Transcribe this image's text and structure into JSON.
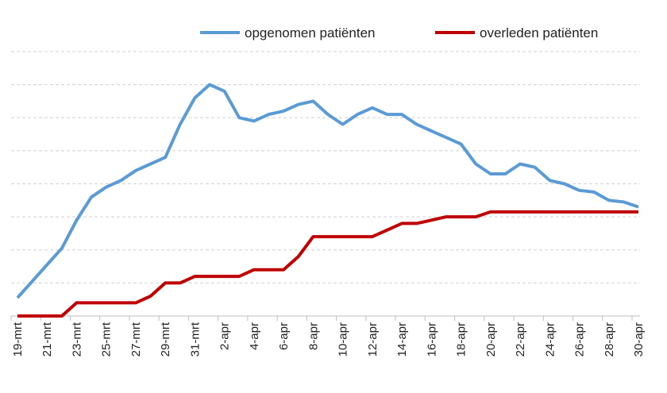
{
  "chart_data": {
    "type": "line",
    "title": "",
    "xlabel": "",
    "ylabel": "",
    "grid": true,
    "legend_position": "top-right",
    "x": [
      "19-mrt",
      "20-mrt",
      "21-mrt",
      "22-mrt",
      "23-mrt",
      "24-mrt",
      "25-mrt",
      "26-mrt",
      "27-mrt",
      "28-mrt",
      "29-mrt",
      "30-mrt",
      "31-mrt",
      "1-apr",
      "2-apr",
      "3-apr",
      "4-apr",
      "5-apr",
      "6-apr",
      "7-apr",
      "8-apr",
      "9-apr",
      "10-apr",
      "11-apr",
      "12-apr",
      "13-apr",
      "14-apr",
      "15-apr",
      "16-apr",
      "17-apr",
      "18-apr",
      "19-apr",
      "20-apr",
      "21-apr",
      "22-apr",
      "23-apr",
      "24-apr",
      "25-apr",
      "26-apr",
      "27-apr",
      "28-apr",
      "29-apr",
      "30-apr"
    ],
    "tick_labels": [
      "19-mrt",
      "21-mrt",
      "23-mrt",
      "25-mrt",
      "27-mrt",
      "29-mrt",
      "31-mrt",
      "2-apr",
      "4-apr",
      "6-apr",
      "8-apr",
      "10-apr",
      "12-apr",
      "14-apr",
      "16-apr",
      "18-apr",
      "20-apr",
      "22-apr",
      "24-apr",
      "26-apr",
      "28-apr",
      "30-apr"
    ],
    "ylim": [
      0,
      8
    ],
    "series": [
      {
        "name": "opgenomen patiënten",
        "color": "#5B9BD5",
        "values": [
          0.55,
          1.05,
          1.55,
          2.05,
          2.9,
          3.6,
          3.9,
          4.1,
          4.4,
          4.6,
          4.8,
          5.8,
          6.6,
          7.0,
          6.8,
          6.0,
          5.9,
          6.1,
          6.2,
          6.4,
          6.5,
          6.1,
          5.8,
          6.1,
          6.3,
          6.1,
          6.1,
          5.8,
          5.6,
          5.4,
          5.2,
          4.6,
          4.3,
          4.3,
          4.6,
          4.5,
          4.1,
          4.0,
          3.8,
          3.75,
          3.5,
          3.45,
          3.3
        ]
      },
      {
        "name": "overleden patiënten",
        "color": "#C00000",
        "values": [
          0,
          0,
          0,
          0,
          0.4,
          0.4,
          0.4,
          0.4,
          0.4,
          0.6,
          1.0,
          1.0,
          1.2,
          1.2,
          1.2,
          1.2,
          1.4,
          1.4,
          1.4,
          1.8,
          2.4,
          2.4,
          2.4,
          2.4,
          2.4,
          2.6,
          2.8,
          2.8,
          2.9,
          3.0,
          3.0,
          3.0,
          3.15,
          3.15,
          3.15,
          3.15,
          3.15,
          3.15,
          3.15,
          3.15,
          3.15,
          3.15,
          3.15
        ]
      }
    ]
  }
}
